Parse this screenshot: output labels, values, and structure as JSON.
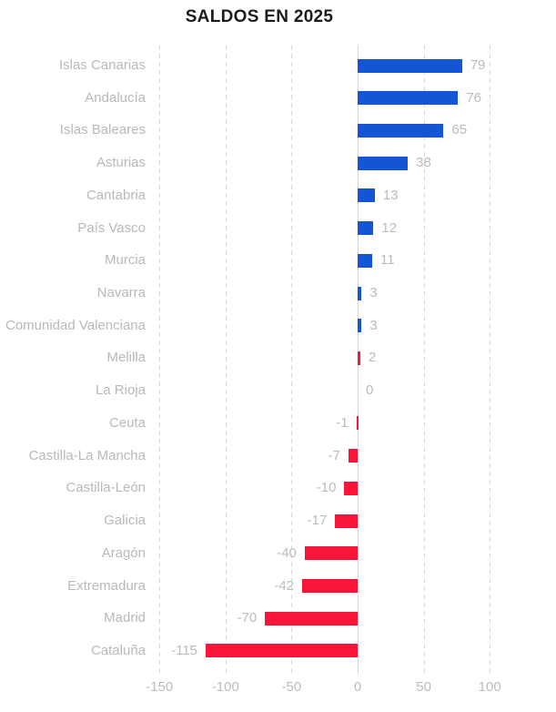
{
  "chart_data": {
    "type": "bar",
    "orientation": "horizontal",
    "title": "SALDOS EN 2025",
    "categories": [
      "Islas Canarias",
      "Andalucía",
      "Islas Baleares",
      "Asturias",
      "Cantabria",
      "País Vasco",
      "Murcia",
      "Navarra",
      "Comunidad Valenciana",
      "Melilla",
      "La Rioja",
      "Ceuta",
      "Castilla-La Mancha",
      "Castilla-León",
      "Galicia",
      "Aragón",
      "Extremadura",
      "Madrid",
      "Cataluña"
    ],
    "values": [
      79,
      76,
      65,
      38,
      13,
      12,
      11,
      3,
      3,
      2,
      0,
      -1,
      -7,
      -10,
      -17,
      -40,
      -42,
      -70,
      -115
    ],
    "value_labels": [
      "79",
      "76",
      "65",
      "38",
      "13",
      "12",
      "11",
      "3",
      "3",
      "2",
      "0",
      "-1",
      "-7",
      "-10",
      "-17",
      "-40",
      "-42",
      "-70",
      "-115"
    ],
    "bar_colors": [
      "blue",
      "blue",
      "blue",
      "blue",
      "blue",
      "blue",
      "blue",
      "blue",
      "blue",
      "red",
      "none",
      "red",
      "red",
      "red",
      "red",
      "red",
      "red",
      "red",
      "red"
    ],
    "xticks": [
      -150,
      -100,
      -50,
      0,
      50,
      100
    ],
    "xtick_labels": [
      "-150",
      "-100",
      "-50",
      "0",
      "50",
      "100"
    ],
    "xlim": [
      -150,
      100
    ],
    "xlabel": "",
    "ylabel": "",
    "grid": "vertical-dashed",
    "legend": "none",
    "colors": {
      "positive": "#1355d4",
      "negative": "#f9143a",
      "label_text": "#b9b9bd",
      "value_text": "#bcbcc0",
      "title_text": "#1c1c1c",
      "gridline": "#d9d9d9",
      "zero_axis": "#d4d4d6",
      "background": "#ffffff"
    }
  }
}
